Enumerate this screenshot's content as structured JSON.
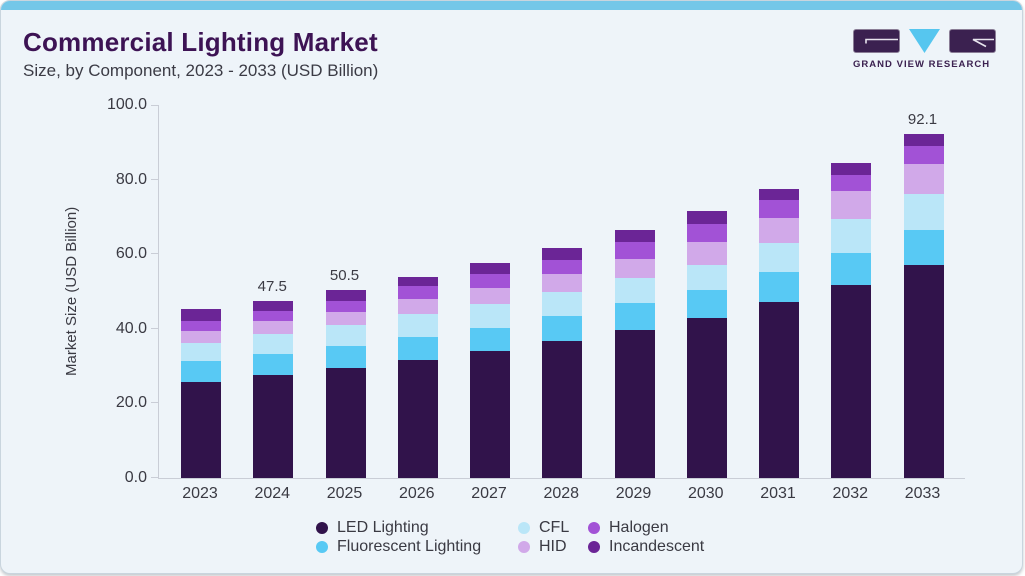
{
  "header": {
    "title": "Commercial Lighting Market",
    "subtitle": "Size, by Component, 2023 - 2033 (USD Billion)"
  },
  "logo": {
    "brand": "GRAND VIEW RESEARCH",
    "purple": "#3b2150",
    "cyan": "#56c6ef"
  },
  "colors": {
    "accent_strip": "#74c7e8",
    "card_background": "#eef4f9",
    "axis_line": "#c9cdd6",
    "text": "#3a3a43",
    "title_text": "#3d1354"
  },
  "chart_data": {
    "type": "bar",
    "stacked": true,
    "title": "Commercial Lighting Market Size, by Component, 2023 - 2033 (USD Billion)",
    "ylabel": "Market Size (USD Billion)",
    "xlabel": "",
    "ylim": [
      0,
      100
    ],
    "ytick_labels": [
      "100.0",
      "80.0",
      "60.0",
      "40.0",
      "20.0",
      "0.0"
    ],
    "grid": false,
    "legend_position": "bottom",
    "categories": [
      "2023",
      "2024",
      "2025",
      "2026",
      "2027",
      "2028",
      "2029",
      "2030",
      "2031",
      "2032",
      "2033"
    ],
    "series": [
      {
        "name": "LED Lighting",
        "color": "#31134b",
        "values": [
          25.8,
          27.5,
          29.6,
          31.7,
          34.0,
          36.8,
          39.8,
          42.9,
          47.2,
          51.8,
          57.0
        ]
      },
      {
        "name": "Fluorescent Lighting",
        "color": "#58c9f4",
        "values": [
          5.5,
          5.8,
          5.8,
          6.0,
          6.3,
          6.6,
          7.1,
          7.4,
          8.0,
          8.6,
          9.5
        ]
      },
      {
        "name": "CFL",
        "color": "#bae6f8",
        "values": [
          5.0,
          5.4,
          5.5,
          6.2,
          6.3,
          6.5,
          6.6,
          6.8,
          7.8,
          9.1,
          9.6
        ]
      },
      {
        "name": "HID",
        "color": "#d1a9e9",
        "values": [
          3.2,
          3.3,
          3.5,
          4.1,
          4.3,
          4.7,
          5.3,
          6.1,
          6.8,
          7.4,
          8.1
        ]
      },
      {
        "name": "Halogen",
        "color": "#a252d6",
        "values": [
          2.6,
          2.7,
          3.0,
          3.5,
          3.8,
          3.9,
          4.5,
          5.0,
          4.8,
          4.4,
          4.7
        ]
      },
      {
        "name": "Incandescent",
        "color": "#6b2596",
        "values": [
          3.1,
          2.8,
          3.1,
          2.5,
          3.0,
          3.2,
          3.1,
          3.3,
          2.8,
          3.1,
          3.2
        ]
      }
    ],
    "bar_total_labels": [
      {
        "category": "2024",
        "text": "47.5"
      },
      {
        "category": "2025",
        "text": "50.5"
      },
      {
        "category": "2033",
        "text": "92.1"
      }
    ],
    "legend_rows": [
      [
        "LED Lighting",
        "CFL",
        "Halogen"
      ],
      [
        "Fluorescent Lighting",
        "HID",
        "Incandescent"
      ]
    ]
  }
}
